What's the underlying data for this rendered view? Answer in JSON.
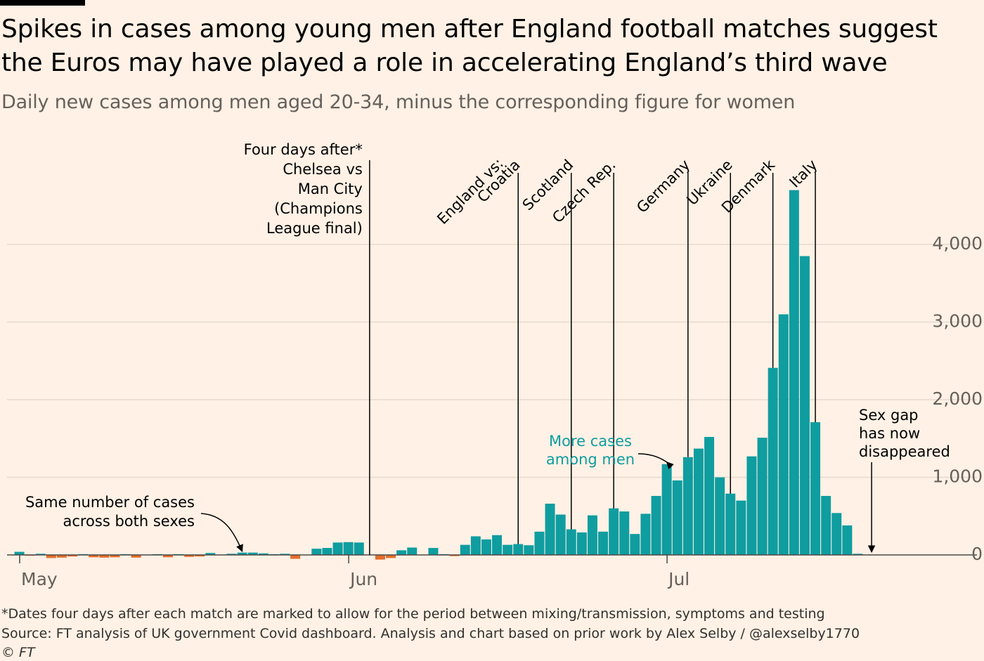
{
  "header": {
    "title": "Spikes in cases among young men after England football matches suggest the Euros may have played a role in accelerating England’s third wave",
    "subtitle": "Daily new cases among men aged 20-34, minus the corresponding figure for women"
  },
  "footer": {
    "footnote": "*Dates four days after each match are marked to allow for the period between mixing/transmission, symptoms and testing",
    "source": "Source: FT analysis of UK government Covid dashboard. Analysis and chart based on prior work by Alex Selby / @alexselby1770",
    "copyright": "© FT"
  },
  "colors": {
    "positive": "#0f9da0",
    "negative": "#e46d2b",
    "background": "#fff1e5",
    "gridline": "#e6d9ce",
    "highlight_text": "#0f9da0"
  },
  "chart_data": {
    "type": "bar",
    "x_start": "2021-05-01",
    "x_end": "2021-07-19",
    "x_ticks": [
      "May",
      "Jun",
      "Jul"
    ],
    "ylim": [
      -100,
      4500
    ],
    "y_ticks": [
      "0",
      "1,000",
      "2,000",
      "3,000",
      "4,000"
    ],
    "y_tick_values": [
      0,
      1000,
      2000,
      3000,
      4000
    ],
    "grid": true,
    "y_axis_side": "right",
    "values": [
      40,
      -10,
      15,
      -40,
      -35,
      -20,
      10,
      -30,
      -35,
      -30,
      10,
      -35,
      5,
      10,
      -30,
      10,
      -25,
      -20,
      25,
      0,
      15,
      30,
      30,
      20,
      10,
      15,
      -50,
      0,
      80,
      90,
      160,
      165,
      160,
      0,
      -60,
      -40,
      60,
      95,
      0,
      90,
      10,
      -15,
      130,
      240,
      200,
      255,
      130,
      140,
      125,
      300,
      660,
      520,
      330,
      290,
      510,
      300,
      600,
      560,
      270,
      530,
      760,
      1170,
      960,
      1260,
      1370,
      1520,
      1000,
      790,
      700,
      1270,
      1510,
      2410,
      3100,
      4700,
      3850,
      1710,
      760,
      540,
      380,
      15
    ],
    "annotations": [
      {
        "label_lines": [
          "Four days after*",
          "Chelsea vs",
          "Man City",
          "(Champions",
          "League final)"
        ],
        "date": "2021-06-03"
      },
      {
        "label": "England vs: Croatia",
        "date": "2021-06-17"
      },
      {
        "label": "Scotland",
        "date": "2021-06-22"
      },
      {
        "label": "Czech Rep.",
        "date": "2021-06-26"
      },
      {
        "label": "Germany",
        "date": "2021-07-03"
      },
      {
        "label": "Ukraine",
        "date": "2021-07-07"
      },
      {
        "label": "Denmark",
        "date": "2021-07-11"
      },
      {
        "label": "Italy",
        "date": "2021-07-15"
      }
    ],
    "callouts": [
      {
        "label_lines": [
          "Same number of cases",
          "across both sexes"
        ],
        "date": "2021-05-22"
      },
      {
        "label_lines": [
          "More cases",
          "among men"
        ],
        "date": "2021-07-01"
      },
      {
        "label_lines": [
          "Sex gap",
          "has now",
          "disappeared"
        ],
        "date": "2021-07-21"
      }
    ]
  }
}
